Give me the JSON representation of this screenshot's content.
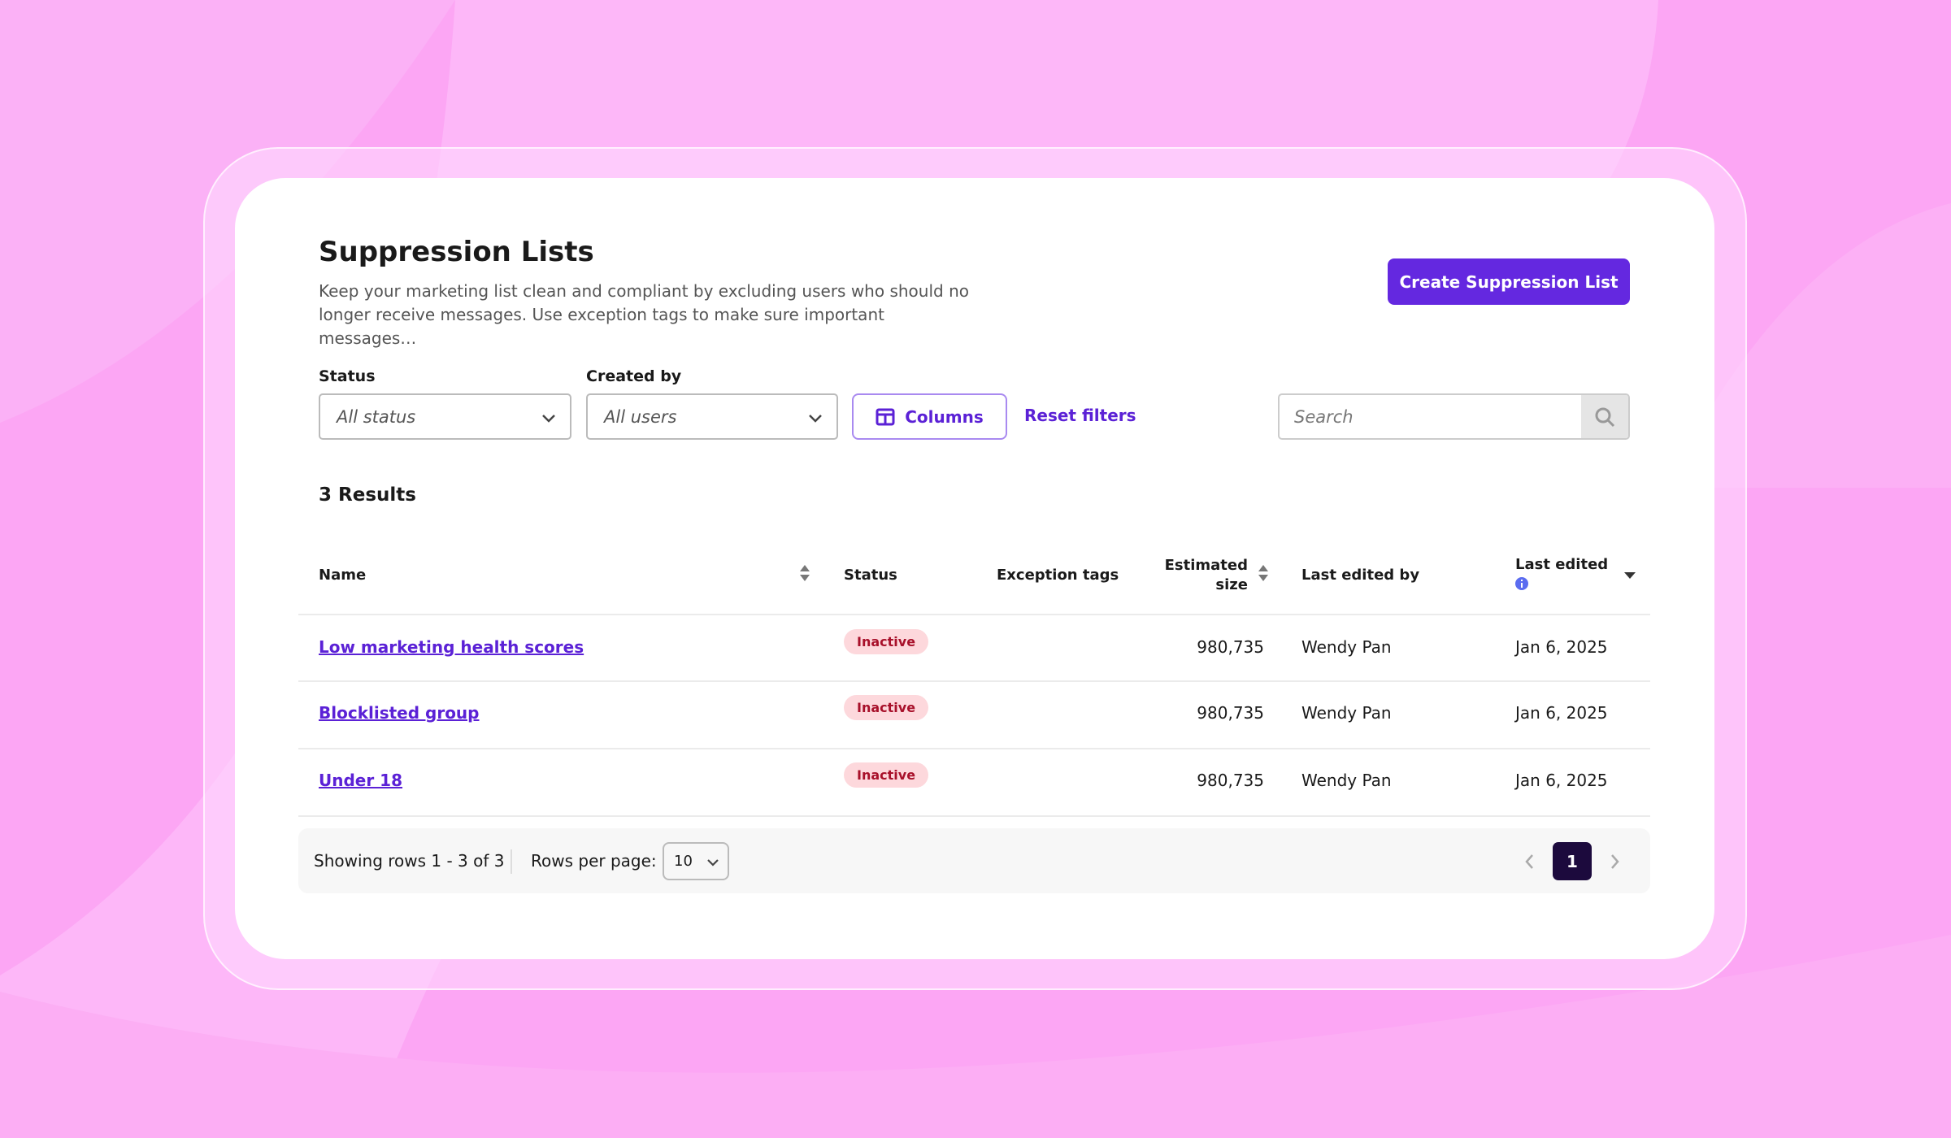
{
  "header": {
    "title": "Suppression Lists",
    "description": "Keep your marketing list clean and compliant by excluding users who should no longer receive messages. Use exception tags to make sure important messages…",
    "create_button": "Create Suppression List"
  },
  "filters": {
    "status_label": "Status",
    "status_placeholder": "All status",
    "created_by_label": "Created by",
    "created_by_placeholder": "All users",
    "columns_button": "Columns",
    "reset_filters": "Reset filters",
    "search_placeholder": "Search"
  },
  "results_count": "3 Results",
  "table": {
    "columns": [
      "Name",
      "Status",
      "Exception tags",
      "Estimated size",
      "Last edited by",
      "Last edited"
    ],
    "rows": [
      {
        "name": "Low marketing health scores",
        "status": "Inactive",
        "estimated_size": "980,735",
        "last_edited_by": "Wendy Pan",
        "last_edited": "Jan 6, 2025"
      },
      {
        "name": "Blocklisted group",
        "status": "Inactive",
        "estimated_size": "980,735",
        "last_edited_by": "Wendy Pan",
        "last_edited": "Jan 6, 2025"
      },
      {
        "name": "Under 18",
        "status": "Inactive",
        "estimated_size": "980,735",
        "last_edited_by": "Wendy Pan",
        "last_edited": "Jan 6, 2025"
      }
    ]
  },
  "footer": {
    "showing": "Showing rows 1 - 3 of 3",
    "rows_per_page_label": "Rows per page:",
    "rows_per_page": "10",
    "current_page": "1"
  }
}
